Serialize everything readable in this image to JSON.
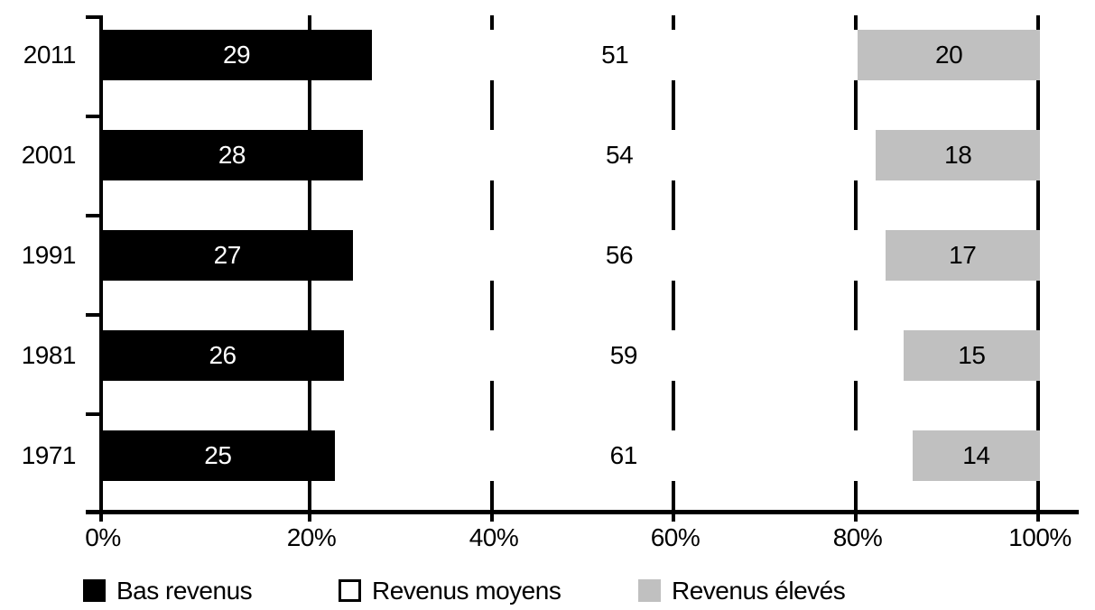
{
  "chart_data": {
    "type": "bar",
    "orientation": "horizontal",
    "stacked": true,
    "title": "",
    "xlabel": "",
    "ylabel": "",
    "categories": [
      "2011",
      "2001",
      "1991",
      "1981",
      "1971"
    ],
    "series": [
      {
        "name": "Bas revenus",
        "color": "#000000",
        "text_color": "#ffffff",
        "values": [
          29,
          28,
          27,
          26,
          25
        ]
      },
      {
        "name": "Revenus moyens",
        "color": "#ffffff",
        "text_color": "#000000",
        "values": [
          51,
          54,
          56,
          59,
          61
        ]
      },
      {
        "name": "Revenus élevés",
        "color": "#c0c0c0",
        "text_color": "#000000",
        "values": [
          20,
          18,
          17,
          15,
          14
        ]
      }
    ],
    "x_axis": {
      "range": [
        0,
        100
      ],
      "tick_labels": [
        "0%",
        "20%",
        "40%",
        "60%",
        "80%",
        "100%"
      ],
      "gridlines": true,
      "gridline_style": "solid-behind-bars"
    },
    "legend": {
      "position": "bottom",
      "items": [
        "Bas revenus",
        "Revenus moyens",
        "Revenus élevés"
      ]
    }
  },
  "colors": {
    "axis": "#000000",
    "background": "#ffffff",
    "bar_black": "#000000",
    "bar_white": "#ffffff",
    "bar_gray": "#c0c0c0"
  }
}
